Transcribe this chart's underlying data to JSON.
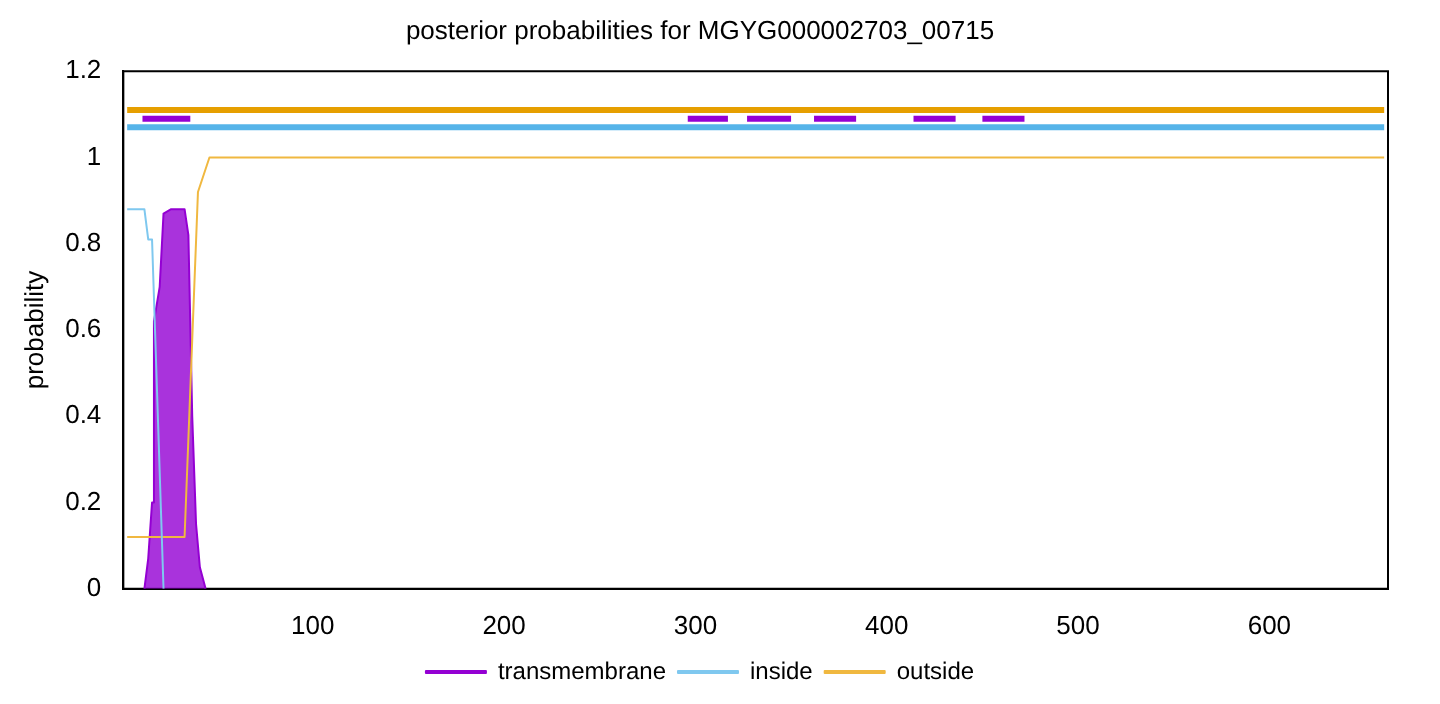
{
  "chart_data": {
    "type": "line",
    "title": "posterior probabilities for MGYG000002703_00715",
    "ylabel": "probability",
    "xlim": [
      1,
      662
    ],
    "xticks": [
      100,
      200,
      300,
      400,
      500,
      600
    ],
    "ylim": [
      0,
      1.2
    ],
    "yticks": [
      0,
      0.2,
      0.4,
      0.6,
      0.8,
      1,
      1.2
    ],
    "grid": false,
    "legend": "bottom",
    "marker": "none",
    "series": [
      {
        "name": "transmembrane",
        "type": "area",
        "color": "#9400d3",
        "x": [
          12,
          14,
          16,
          17,
          20,
          22,
          26,
          33,
          35,
          37,
          39,
          41,
          44
        ],
        "values": [
          0,
          0.07,
          0.2,
          0.62,
          0.7,
          0.87,
          0.88,
          0.88,
          0.82,
          0.4,
          0.15,
          0.05,
          0
        ]
      },
      {
        "name": "inside",
        "color": "#7fc8ef",
        "x": [
          3,
          12,
          14,
          16,
          22
        ],
        "values": [
          0.88,
          0.88,
          0.81,
          0.81,
          0
        ]
      },
      {
        "name": "outside",
        "color": "#f0b840",
        "x": [
          3,
          33,
          40,
          46,
          660
        ],
        "values": [
          0.12,
          0.12,
          0.92,
          1,
          1
        ]
      },
      {
        "color": "#e69f00",
        "x": [
          3,
          660
        ],
        "values": [
          1.11,
          1.11
        ]
      },
      {
        "color": "#56b4e9",
        "x": [
          3,
          660
        ],
        "values": [
          1.07,
          1.07
        ]
      },
      {
        "color": "#9400d3",
        "x": [
          11,
          36
        ],
        "values": [
          1.09,
          1.09
        ]
      },
      {
        "color": "#9400d3",
        "x": [
          296,
          317
        ],
        "values": [
          1.09,
          1.09
        ]
      },
      {
        "color": "#9400d3",
        "x": [
          327,
          350
        ],
        "values": [
          1.09,
          1.09
        ]
      },
      {
        "color": "#9400d3",
        "x": [
          362,
          384
        ],
        "values": [
          1.09,
          1.09
        ]
      },
      {
        "color": "#9400d3",
        "x": [
          414,
          436
        ],
        "values": [
          1.09,
          1.09
        ]
      },
      {
        "color": "#9400d3",
        "x": [
          450,
          472
        ],
        "values": [
          1.09,
          1.09
        ]
      }
    ]
  }
}
